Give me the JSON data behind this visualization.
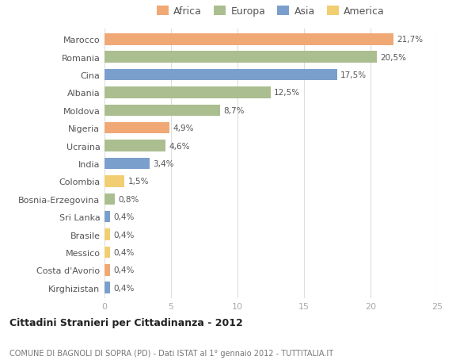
{
  "countries": [
    "Marocco",
    "Romania",
    "Cina",
    "Albania",
    "Moldova",
    "Nigeria",
    "Ucraina",
    "India",
    "Colombia",
    "Bosnia-Erzegovina",
    "Sri Lanka",
    "Brasile",
    "Messico",
    "Costa d'Avorio",
    "Kirghizistan"
  ],
  "values": [
    21.7,
    20.5,
    17.5,
    12.5,
    8.7,
    4.9,
    4.6,
    3.4,
    1.5,
    0.8,
    0.4,
    0.4,
    0.4,
    0.4,
    0.4
  ],
  "labels": [
    "21,7%",
    "20,5%",
    "17,5%",
    "12,5%",
    "8,7%",
    "4,9%",
    "4,6%",
    "3,4%",
    "1,5%",
    "0,8%",
    "0,4%",
    "0,4%",
    "0,4%",
    "0,4%",
    "0,4%"
  ],
  "continents": [
    "Africa",
    "Europa",
    "Asia",
    "Europa",
    "Europa",
    "Africa",
    "Europa",
    "Asia",
    "America",
    "Europa",
    "Asia",
    "America",
    "America",
    "Africa",
    "Asia"
  ],
  "colors": {
    "Africa": "#F0A875",
    "Europa": "#ABBE8F",
    "Asia": "#7B9FCC",
    "America": "#F2CE72"
  },
  "title1": "Cittadini Stranieri per Cittadinanza - 2012",
  "title2": "COMUNE DI BAGNOLI DI SOPRA (PD) - Dati ISTAT al 1° gennaio 2012 - TUTTITALIA.IT",
  "xlim": [
    0,
    25
  ],
  "xticks": [
    0,
    5,
    10,
    15,
    20,
    25
  ],
  "bg_color": "#ffffff",
  "bar_height": 0.65,
  "legend_order": [
    "Africa",
    "Europa",
    "Asia",
    "America"
  ]
}
